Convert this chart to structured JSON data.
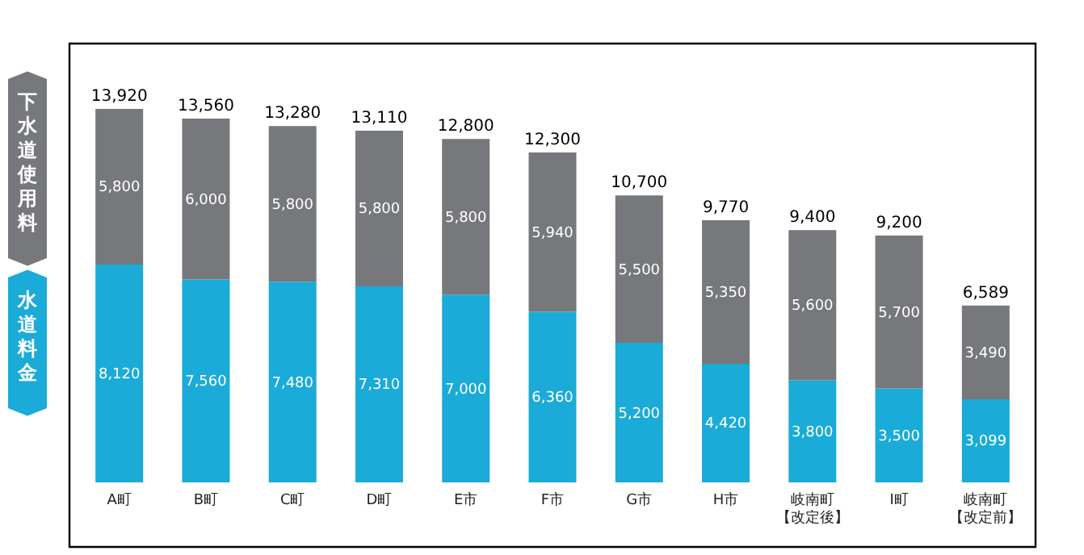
{
  "chart_data": {
    "type": "bar",
    "stacked": true,
    "legend": "left",
    "grid": false,
    "categories": [
      "A町",
      "B町",
      "C町",
      "D町",
      "E市",
      "F市",
      "G市",
      "H市",
      "岐南町【改定後】",
      "I町",
      "岐南町【改定前】"
    ],
    "series": [
      {
        "name": "水道料金",
        "color": "#1aabd8",
        "values": [
          8120,
          7560,
          7480,
          7310,
          7000,
          6360,
          5200,
          4420,
          3800,
          3500,
          3099
        ],
        "value_labels": [
          "8,120",
          "7,560",
          "7,480",
          "7,310",
          "7,000",
          "6,360",
          "5,200",
          "4,420",
          "3,800",
          "3,500",
          "3,099"
        ]
      },
      {
        "name": "下水道使用料",
        "color": "#77787b",
        "values": [
          5800,
          6000,
          5800,
          5800,
          5800,
          5940,
          5500,
          5350,
          5600,
          5700,
          3490
        ],
        "value_labels": [
          "5,800",
          "6,000",
          "5,800",
          "5,800",
          "5,800",
          "5,940",
          "5,500",
          "5,350",
          "5,600",
          "5,700",
          "3,490"
        ]
      }
    ],
    "totals": [
      "13,920",
      "13,560",
      "13,280",
      "13,110",
      "12,800",
      "12,300",
      "10,700",
      "9,770",
      "9,400",
      "9,200",
      "6,589"
    ]
  }
}
